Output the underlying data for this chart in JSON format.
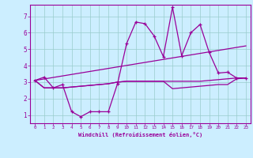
{
  "background_color": "#cceeff",
  "line_color": "#990099",
  "grid_color": "#99cccc",
  "xlabel": "Windchill (Refroidissement éolien,°C)",
  "xlabel_color": "#990099",
  "tick_color": "#990099",
  "xlim": [
    -0.5,
    23.5
  ],
  "ylim": [
    0.5,
    7.7
  ],
  "yticks": [
    1,
    2,
    3,
    4,
    5,
    6,
    7
  ],
  "xticks": [
    0,
    1,
    2,
    3,
    4,
    5,
    6,
    7,
    8,
    9,
    10,
    11,
    12,
    13,
    14,
    15,
    16,
    17,
    18,
    19,
    20,
    21,
    22,
    23
  ],
  "line1_x": [
    0,
    1,
    2,
    3,
    4,
    5,
    6,
    7,
    8,
    9,
    10,
    11,
    12,
    13,
    14,
    15,
    16,
    17,
    18,
    19,
    20,
    21,
    22,
    23
  ],
  "line1_y": [
    3.1,
    3.3,
    2.65,
    2.85,
    1.2,
    0.9,
    1.2,
    1.2,
    1.2,
    2.9,
    5.35,
    6.65,
    6.55,
    5.8,
    4.55,
    7.55,
    4.6,
    6.0,
    6.5,
    4.8,
    3.55,
    3.6,
    3.25,
    3.25
  ],
  "line2_x": [
    0,
    23
  ],
  "line2_y": [
    3.1,
    5.2
  ],
  "line3_x": [
    0,
    1,
    2,
    3,
    4,
    5,
    6,
    7,
    8,
    9,
    10,
    11,
    12,
    13,
    14,
    15,
    16,
    17,
    18,
    19,
    20,
    21,
    22,
    23
  ],
  "line3_y": [
    3.1,
    2.65,
    2.65,
    2.65,
    2.7,
    2.75,
    2.8,
    2.85,
    2.9,
    3.0,
    3.05,
    3.05,
    3.05,
    3.05,
    3.05,
    3.05,
    3.05,
    3.05,
    3.05,
    3.1,
    3.15,
    3.2,
    3.25,
    3.25
  ],
  "line4_x": [
    0,
    1,
    2,
    3,
    4,
    5,
    6,
    7,
    8,
    9,
    10,
    11,
    12,
    13,
    14,
    15,
    16,
    17,
    18,
    19,
    20,
    21,
    22,
    23
  ],
  "line4_y": [
    3.1,
    2.65,
    2.65,
    2.65,
    2.7,
    2.75,
    2.8,
    2.85,
    2.9,
    3.0,
    3.05,
    3.05,
    3.05,
    3.05,
    3.05,
    2.6,
    2.65,
    2.7,
    2.75,
    2.8,
    2.85,
    2.85,
    3.2,
    3.25
  ]
}
